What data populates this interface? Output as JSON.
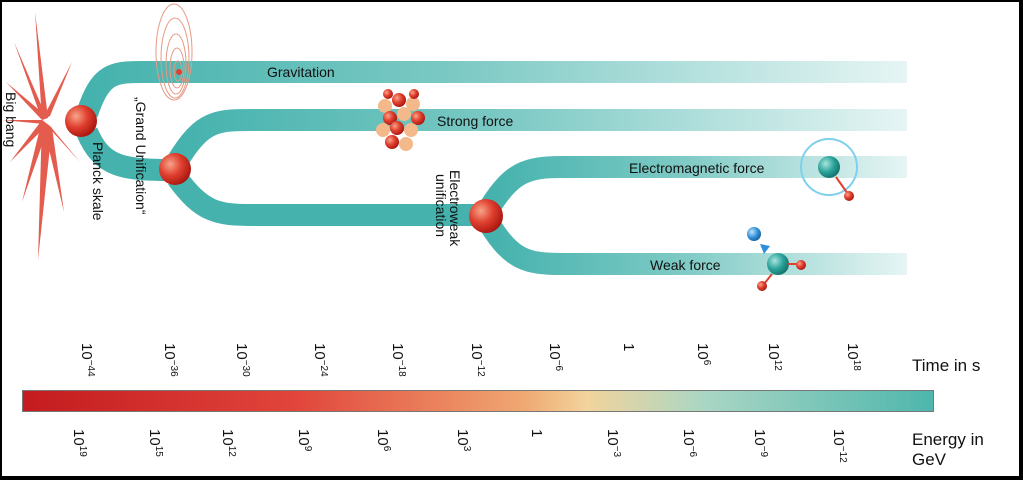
{
  "diagram": {
    "origin_label": "Big bang",
    "stage_labels": {
      "planck": "Planck skale",
      "grand_unification": "„Grand Unification“",
      "electroweak_line1": "Electroweak",
      "electroweak_line2": "unification"
    },
    "forces": {
      "gravitation": "Gravitation",
      "strong": "Strong force",
      "electromagnetic": "Electromagnetic force",
      "weak": "Weak force"
    },
    "colors": {
      "branch": "#45b2ad",
      "node": "#d8342a",
      "burst": "#e0402f",
      "teal_particle": "#2aa39a",
      "blue_particle": "#2e8fd8"
    }
  },
  "time_axis": {
    "title": "Time in s",
    "ticks": [
      {
        "base": "10",
        "exp": "−44"
      },
      {
        "base": "10",
        "exp": "−36"
      },
      {
        "base": "10",
        "exp": "−30"
      },
      {
        "base": "10",
        "exp": "−24"
      },
      {
        "base": "10",
        "exp": "−18"
      },
      {
        "base": "10",
        "exp": "−12"
      },
      {
        "base": "10",
        "exp": "−6"
      },
      {
        "base": "1",
        "exp": ""
      },
      {
        "base": "10",
        "exp": "6"
      },
      {
        "base": "10",
        "exp": "12"
      },
      {
        "base": "10",
        "exp": "18"
      }
    ]
  },
  "energy_axis": {
    "title": "Energy in GeV",
    "ticks": [
      {
        "base": "10",
        "exp": "19"
      },
      {
        "base": "10",
        "exp": "15"
      },
      {
        "base": "10",
        "exp": "12"
      },
      {
        "base": "10",
        "exp": "9"
      },
      {
        "base": "10",
        "exp": "6"
      },
      {
        "base": "10",
        "exp": "3"
      },
      {
        "base": "1",
        "exp": ""
      },
      {
        "base": "10",
        "exp": "−3"
      },
      {
        "base": "10",
        "exp": "−6"
      },
      {
        "base": "10",
        "exp": "−9"
      },
      {
        "base": "10",
        "exp": "−12"
      }
    ],
    "gradient_colors": [
      "#c41b1f",
      "#f0a872",
      "#4eb6ad"
    ]
  }
}
